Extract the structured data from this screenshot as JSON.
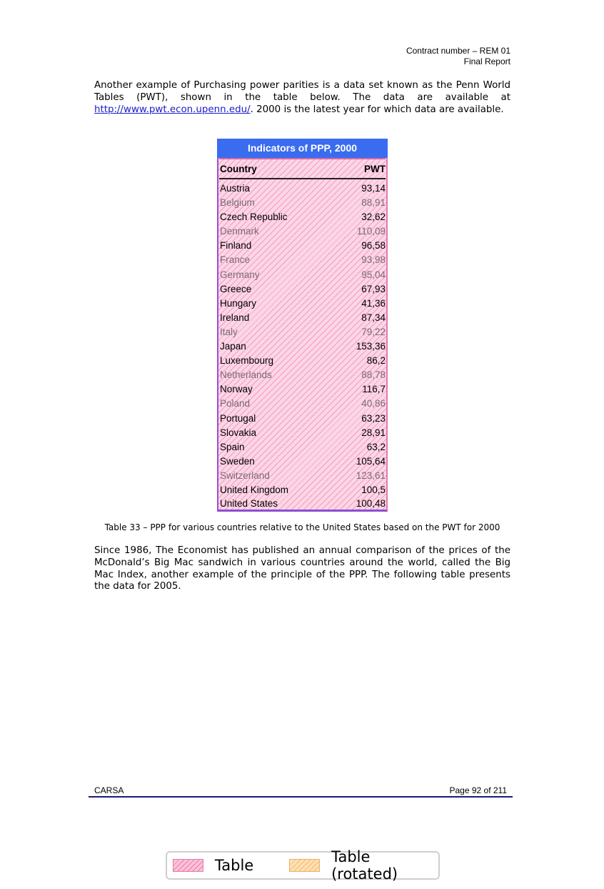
{
  "header": {
    "line1": "Contract number – REM 01",
    "line2": "Final Report"
  },
  "intro": {
    "text_before_link": "Another example of Purchasing power parities is a data set known as the Penn World Tables (PWT), shown in the table below. The data are available at ",
    "link": "http://www.pwt.econ.upenn.edu/",
    "text_after_link": ". 2000 is the latest year for which data are available."
  },
  "table": {
    "title": "Indicators of PPP, 2000",
    "col_country": "Country",
    "col_value": "PWT",
    "rows": [
      {
        "country": "Austria",
        "value": "93,14",
        "dim": false
      },
      {
        "country": "Belgium",
        "value": "88,91",
        "dim": true
      },
      {
        "country": "Czech Republic",
        "value": "32,62",
        "dim": false
      },
      {
        "country": "Denmark",
        "value": "110,09",
        "dim": true
      },
      {
        "country": "Finland",
        "value": "96,58",
        "dim": false
      },
      {
        "country": "France",
        "value": "93,98",
        "dim": true
      },
      {
        "country": "Germany",
        "value": "95,04",
        "dim": true
      },
      {
        "country": "Greece",
        "value": "67,93",
        "dim": false
      },
      {
        "country": "Hungary",
        "value": "41,36",
        "dim": false
      },
      {
        "country": "Ireland",
        "value": "87,34",
        "dim": false
      },
      {
        "country": "Italy",
        "value": "79,22",
        "dim": true
      },
      {
        "country": "Japan",
        "value": "153,36",
        "dim": false
      },
      {
        "country": "Luxembourg",
        "value": "86,2",
        "dim": false
      },
      {
        "country": "Netherlands",
        "value": "88,78",
        "dim": true
      },
      {
        "country": "Norway",
        "value": "116,7",
        "dim": false
      },
      {
        "country": "Poland",
        "value": "40,86",
        "dim": true
      },
      {
        "country": "Portugal",
        "value": "63,23",
        "dim": false
      },
      {
        "country": "Slovakia",
        "value": "28,91",
        "dim": false
      },
      {
        "country": "Spain",
        "value": "63,2",
        "dim": false
      },
      {
        "country": "Sweden",
        "value": "105,64",
        "dim": false
      },
      {
        "country": "Switzerland",
        "value": "123,61",
        "dim": true
      },
      {
        "country": "United Kingdom",
        "value": "100,5",
        "dim": false
      },
      {
        "country": "United States",
        "value": "100,48",
        "dim": false
      }
    ]
  },
  "caption": "Table 33 – PPP for various countries relative to the United States based on the PWT for 2000",
  "paragraph2": "Since 1986, The Economist has published an annual comparison of the prices of the McDonald’s Big Mac sandwich in various countries around the world, called the Big Mac Index, another example of the principle of the PPP. The following table presents the data for 2005.",
  "footer": {
    "left": "CARSA",
    "right": "Page 92 of 211"
  },
  "legend": {
    "item1": "Table",
    "item2": "Table (rotated)",
    "color1": "#fbc3da",
    "color2": "#fde0b5"
  }
}
